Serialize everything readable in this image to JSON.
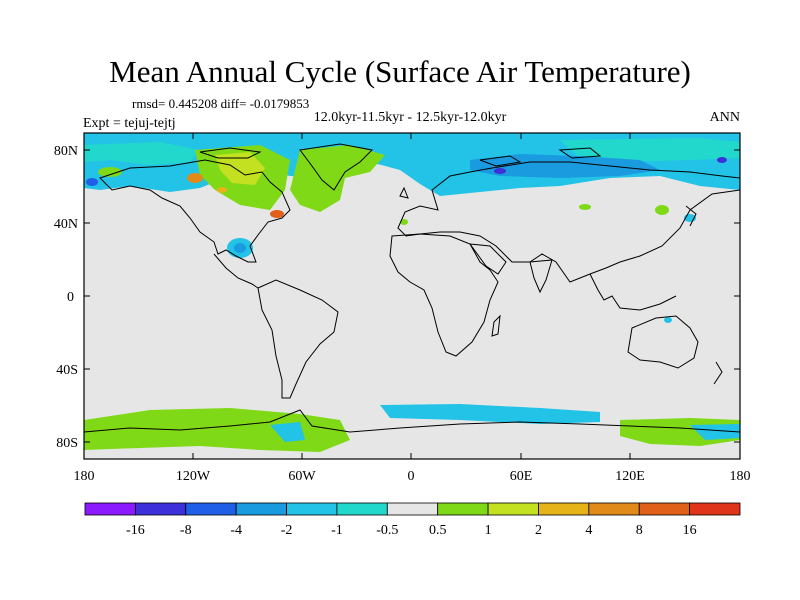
{
  "title": "Mean Annual Cycle (Surface Air Temperature)",
  "stats_line": "rmsd= 0.445208  diff= -0.0179853",
  "subtitle": "12.0kyr-11.5kyr - 12.5kyr-12.0kyr",
  "left_label": "Expt = tejuj-tejtj",
  "right_label": "ANN",
  "lat_labels": [
    "80N",
    "40N",
    "0",
    "40S",
    "80S"
  ],
  "lon_labels": [
    "180",
    "120W",
    "60W",
    "0",
    "60E",
    "120E",
    "180"
  ],
  "legend": {
    "labels": [
      "-16",
      "-8",
      "-4",
      "-2",
      "-1",
      "-0.5",
      "0.5",
      "1",
      "2",
      "4",
      "8",
      "16"
    ],
    "colors": [
      "#8c1aff",
      "#3d2fd9",
      "#1f5fe8",
      "#1a9be0",
      "#22c3e6",
      "#22d8cc",
      "#e6e6e6",
      "#7fd917",
      "#c3e021",
      "#e6b319",
      "#e08a1a",
      "#e0601a",
      "#e0341a"
    ]
  },
  "colors": {
    "background_field": "#e6e6e6",
    "coast": "#000000"
  }
}
